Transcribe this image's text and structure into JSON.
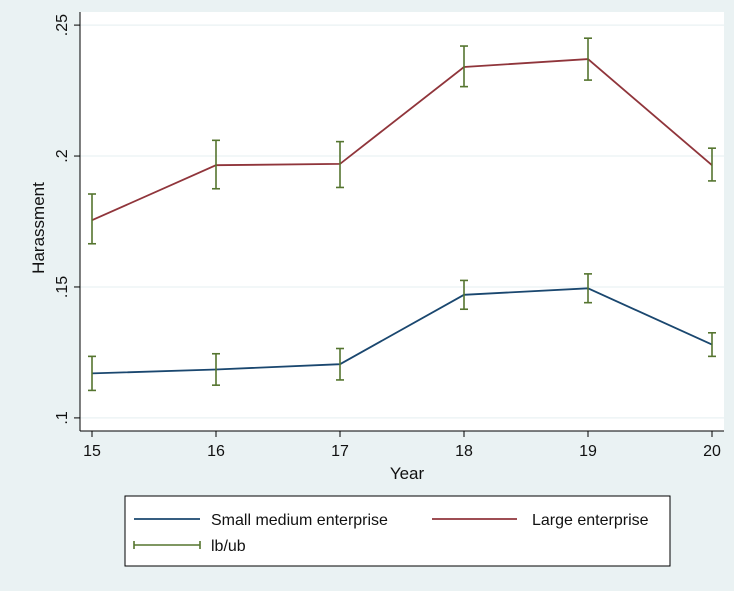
{
  "chart_data": {
    "type": "line",
    "title": "",
    "xlabel": "Year",
    "ylabel": "Harassment",
    "x": [
      15,
      16,
      17,
      18,
      19,
      20
    ],
    "x_ticks": [
      "15",
      "16",
      "17",
      "18",
      "19",
      "20"
    ],
    "y_ticks": [
      ".1",
      ".15",
      ".2",
      ".25"
    ],
    "y_tick_values": [
      0.1,
      0.15,
      0.2,
      0.25
    ],
    "xlim": [
      15,
      20
    ],
    "ylim": [
      0.095,
      0.255
    ],
    "grid": true,
    "legend_position": "bottom",
    "series": [
      {
        "name": "Small medium enterprise",
        "color": "#1a476f",
        "values": [
          0.117,
          0.1185,
          0.1205,
          0.147,
          0.1495,
          0.128
        ],
        "lb": [
          0.1105,
          0.1125,
          0.1145,
          0.1415,
          0.144,
          0.1235
        ],
        "ub": [
          0.1235,
          0.1245,
          0.1265,
          0.1525,
          0.155,
          0.1325
        ]
      },
      {
        "name": "Large enterprise",
        "color": "#90353b",
        "values": [
          0.1755,
          0.1965,
          0.197,
          0.234,
          0.237,
          0.1965
        ],
        "lb": [
          0.1665,
          0.1875,
          0.188,
          0.2265,
          0.229,
          0.1905
        ],
        "ub": [
          0.1855,
          0.206,
          0.2055,
          0.242,
          0.245,
          0.203
        ]
      }
    ],
    "errorbar": {
      "name": "lb/ub",
      "color": "#55752f"
    }
  }
}
